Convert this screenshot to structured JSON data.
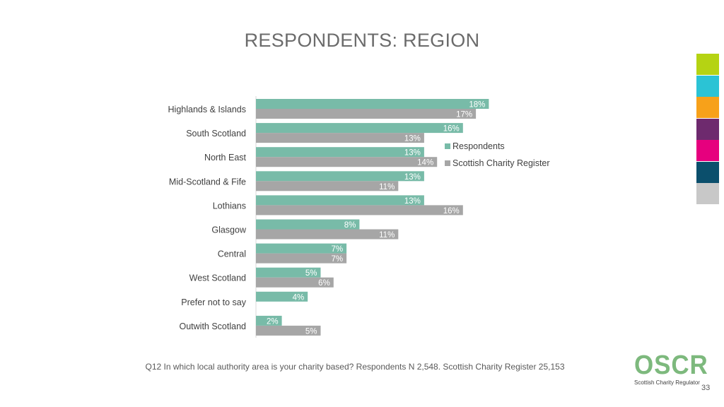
{
  "slide": {
    "title": "RESPONDENTS: REGION",
    "footnote": "Q12 In which local authority area is your charity based? Respondents N 2,548. Scottish Charity Register 25,153",
    "page_number": "33",
    "logo": {
      "main": "OSCR",
      "sub": "Scottish Charity Regulator"
    },
    "swatch_colors": [
      "#b5d313",
      "#2bc3d5",
      "#f7a11a",
      "#6e2a6e",
      "#e6007e",
      "#0b4f6c",
      "#c8c8c8"
    ]
  },
  "chart_data": {
    "type": "bar",
    "orientation": "horizontal",
    "categories": [
      "Highlands & Islands",
      "South Scotland",
      "North East",
      "Mid-Scotland & Fife",
      "Lothians",
      "Glasgow",
      "Central",
      "West Scotland",
      "Prefer not to say",
      "Outwith Scotland"
    ],
    "series": [
      {
        "name": "Respondents",
        "color": "#78bba8",
        "values": [
          18,
          16,
          13,
          13,
          13,
          8,
          7,
          5,
          4,
          2
        ],
        "labels": [
          "18%",
          "16%",
          "13%",
          "13%",
          "13%",
          "8%",
          "7%",
          "5%",
          "4%",
          "2%"
        ]
      },
      {
        "name": "Scottish Charity Register",
        "color": "#a6a6a6",
        "values": [
          17,
          13,
          14,
          11,
          16,
          11,
          7,
          6,
          null,
          5
        ],
        "labels": [
          "17%",
          "13%",
          "14%",
          "11%",
          "16%",
          "11%",
          "7%",
          "6%",
          "",
          "5%"
        ]
      }
    ],
    "value_unit": "%",
    "xlim": [
      0,
      100
    ],
    "grid": false,
    "legend_position": "right"
  }
}
